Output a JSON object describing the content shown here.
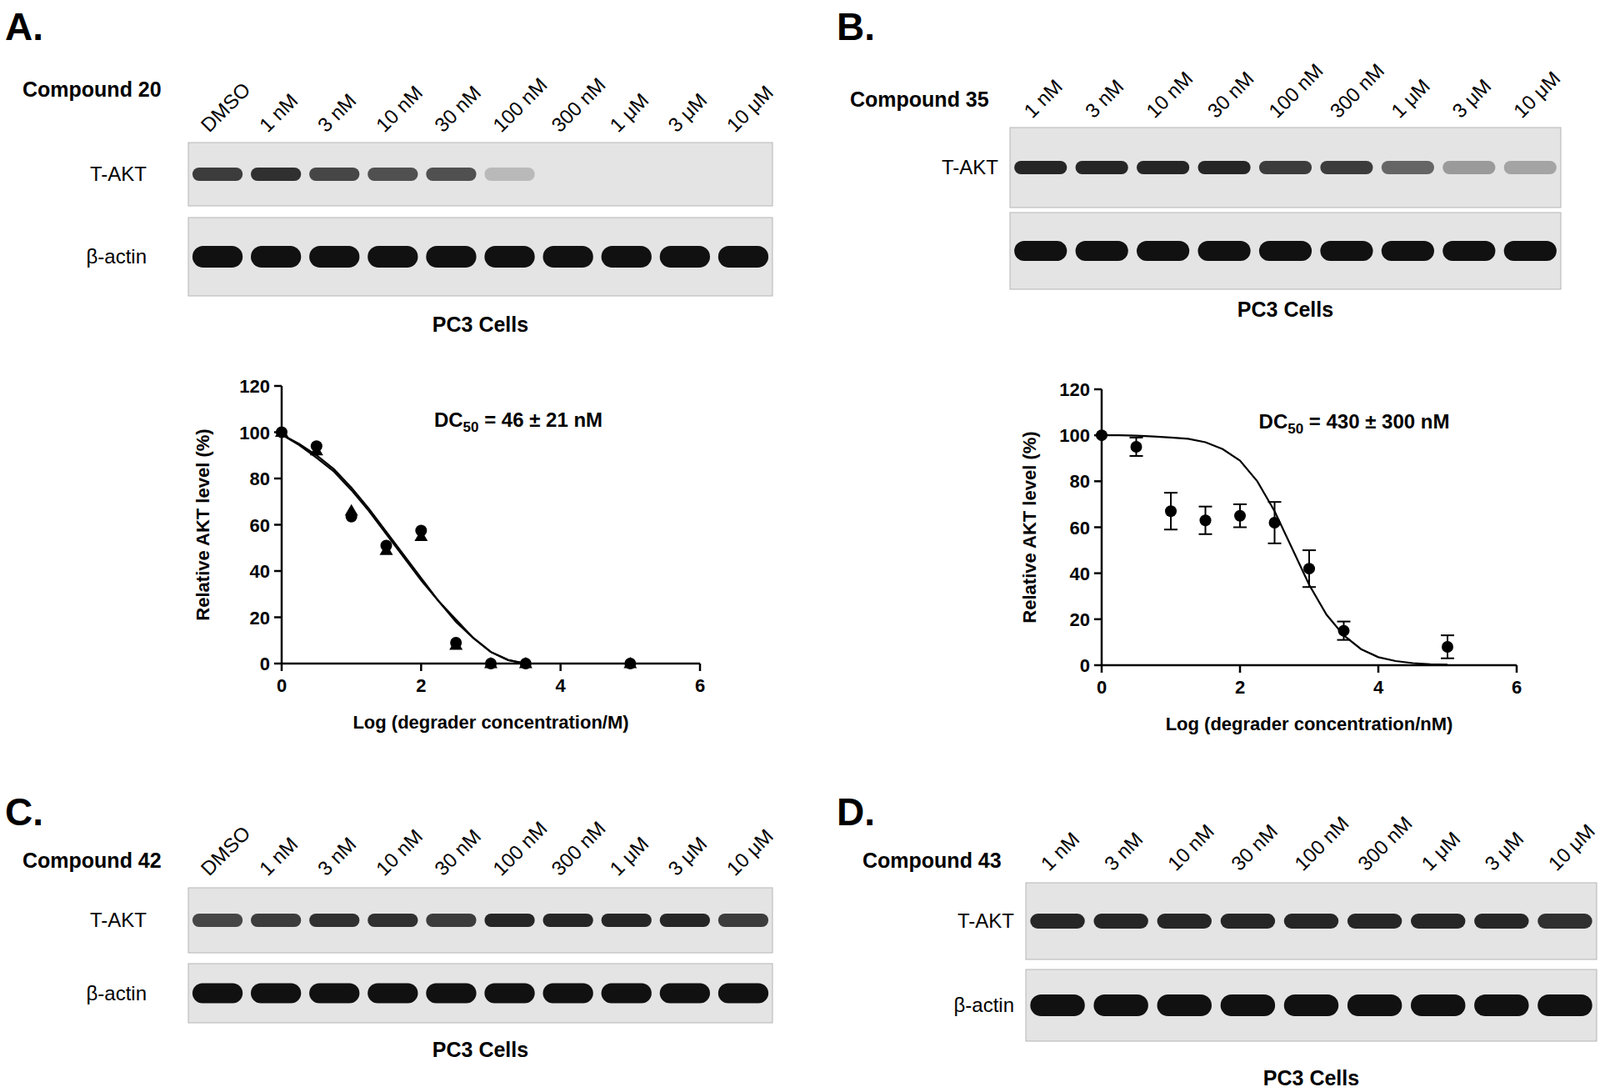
{
  "chart_data": [
    {
      "type": "blot",
      "panel": "A.",
      "title": "Compound 20",
      "lanes": [
        "DMSO",
        "1 nM",
        "3 nM",
        "10 nM",
        "30 nM",
        "100 nM",
        "300 nM",
        "1 μM",
        "3 μM",
        "10 μM"
      ],
      "rows": [
        {
          "label": "T-AKT",
          "values": [
            0.8,
            0.85,
            0.75,
            0.7,
            0.7,
            0.2,
            0,
            0,
            0,
            0
          ]
        },
        {
          "label": "β-actin",
          "values": [
            1,
            1,
            1,
            1,
            1,
            1,
            1,
            1,
            1,
            1
          ]
        }
      ],
      "caption": "PC3 Cells"
    },
    {
      "type": "scatter",
      "xlabel": "Log (degrader concentration/M)",
      "ylabel": "Relative AKT level (%)",
      "annotation": [
        "DC",
        "50",
        " = 46 ±  21 nM"
      ],
      "xlim": [
        0,
        6
      ],
      "ylim": [
        0,
        120
      ],
      "xticks": [
        0,
        2,
        4,
        6
      ],
      "yticks": [
        0,
        20,
        40,
        60,
        80,
        100,
        120
      ],
      "series": [
        {
          "type": "line",
          "color": "#000000",
          "line_style": "solid",
          "x": [
            0,
            0.25,
            0.5,
            0.75,
            1,
            1.25,
            1.5,
            1.75,
            2,
            2.25,
            2.5,
            2.75,
            3,
            3.25,
            3.5
          ],
          "values": [
            99,
            95,
            90,
            84,
            76,
            67,
            57,
            47,
            37,
            27,
            19,
            11,
            5,
            1.5,
            0
          ]
        },
        {
          "type": "line",
          "color": "#000000",
          "line_style": "solid",
          "x": [
            0,
            0.25,
            0.5,
            0.75,
            1,
            1.25,
            1.5,
            1.75,
            2,
            2.25,
            2.5,
            2.75,
            3,
            3.25,
            3.5
          ],
          "values": [
            99,
            94.5,
            89,
            83,
            75,
            66,
            56,
            46,
            36,
            27,
            18,
            11,
            5,
            1.5,
            0
          ]
        },
        {
          "type": "scatter",
          "marker": "circle",
          "color": "#000000",
          "x": [
            0,
            0.5,
            1,
            1.5,
            2,
            2.5,
            3,
            3.5,
            5
          ],
          "values": [
            100,
            94,
            63.5,
            51,
            57.5,
            9,
            0,
            0,
            0
          ]
        },
        {
          "type": "scatter",
          "marker": "triangle",
          "color": "#000000",
          "x": [
            0,
            0.5,
            1,
            1.5,
            2,
            2.5,
            3,
            3.5,
            5
          ],
          "values": [
            100,
            92,
            66,
            49,
            55,
            8,
            0,
            0,
            0
          ]
        }
      ]
    },
    {
      "type": "blot",
      "panel": "B.",
      "title": "Compound 35",
      "lanes": [
        "1 nM",
        "3 nM",
        "10 nM",
        "30 nM",
        "100 nM",
        "300 nM",
        "1 μM",
        "3 μM",
        "10 μM"
      ],
      "rows": [
        {
          "label": "T-AKT",
          "values": [
            0.9,
            0.9,
            0.9,
            0.9,
            0.8,
            0.8,
            0.6,
            0.35,
            0.3
          ]
        },
        {
          "label": null,
          "values": [
            1,
            1,
            1,
            1,
            1,
            1,
            1,
            1,
            1
          ]
        }
      ],
      "caption": "PC3 Cells"
    },
    {
      "type": "scatter",
      "xlabel": "Log (degrader concentration/nM)",
      "ylabel": "Relative AKT level (%)",
      "annotation": [
        "DC",
        "50",
        " = 430 ±  300 nM"
      ],
      "xlim": [
        0,
        6
      ],
      "ylim": [
        0,
        120
      ],
      "xticks": [
        0,
        2,
        4,
        6
      ],
      "yticks": [
        0,
        20,
        40,
        60,
        80,
        100,
        120
      ],
      "series": [
        {
          "type": "line",
          "color": "#000000",
          "line_style": "solid",
          "x": [
            0,
            0.25,
            0.5,
            0.75,
            1,
            1.25,
            1.5,
            1.75,
            2,
            2.25,
            2.5,
            2.75,
            3,
            3.25,
            3.5,
            3.75,
            4,
            4.25,
            4.5,
            4.75,
            5
          ],
          "values": [
            100,
            100,
            99.8,
            99.5,
            99,
            98.5,
            97,
            94,
            89,
            80,
            67,
            51,
            35,
            22,
            13,
            7,
            3.5,
            1.8,
            0.9,
            0.4,
            0.2
          ]
        },
        {
          "type": "scatter",
          "marker": "circle",
          "color": "#000000",
          "x": [
            0,
            0.5,
            1,
            1.5,
            2,
            2.5,
            3,
            3.5,
            5
          ],
          "values": [
            100,
            95,
            67,
            63,
            65,
            62,
            42,
            15,
            8
          ],
          "errors": [
            0,
            4,
            8,
            6,
            5,
            9,
            8,
            4,
            5
          ]
        }
      ]
    },
    {
      "type": "blot",
      "panel": "C.",
      "title": "Compound 42",
      "lanes": [
        "DMSO",
        "1 nM",
        "3 nM",
        "10 nM",
        "30 nM",
        "100 nM",
        "300 nM",
        "1 μM",
        "3 μM",
        "10 μM"
      ],
      "rows": [
        {
          "label": "T-AKT",
          "values": [
            0.75,
            0.8,
            0.85,
            0.85,
            0.8,
            0.9,
            0.9,
            0.9,
            0.9,
            0.8
          ]
        },
        {
          "label": "β-actin",
          "values": [
            1,
            1,
            1,
            1,
            1,
            1,
            1,
            1,
            1,
            1
          ]
        }
      ],
      "caption": "PC3 Cells"
    },
    {
      "type": "blot",
      "panel": "D.",
      "title": "Compound 43",
      "lanes": [
        "1 nM",
        "3 nM",
        "10 nM",
        "30 nM",
        "100 nM",
        "300 nM",
        "1 μM",
        "3 μM",
        "10 μM"
      ],
      "rows": [
        {
          "label": "T-AKT",
          "values": [
            0.9,
            0.9,
            0.9,
            0.9,
            0.9,
            0.9,
            0.9,
            0.9,
            0.85
          ]
        },
        {
          "label": "β-actin",
          "values": [
            1,
            1,
            1,
            1,
            1,
            1,
            1,
            1,
            1
          ]
        }
      ],
      "caption": "PC3 Cells"
    }
  ]
}
